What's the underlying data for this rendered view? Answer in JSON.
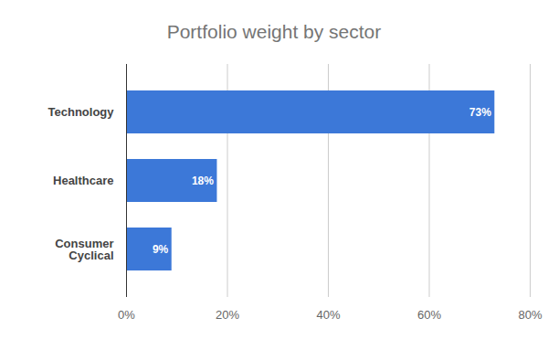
{
  "chart_data": {
    "type": "bar",
    "title": "Portfolio weight by sector",
    "orientation": "horizontal",
    "categories": [
      "Technology",
      "Healthcare",
      "Consumer Cyclical"
    ],
    "values": [
      73,
      18,
      9
    ],
    "value_labels": [
      "73%",
      "18%",
      "9%"
    ],
    "data_labels": true,
    "color": "#3c78d8",
    "xlim": [
      0,
      80
    ],
    "xticks": [
      {
        "value": 0,
        "label": "0%"
      },
      {
        "value": 20,
        "label": "20%"
      },
      {
        "value": 40,
        "label": "40%"
      },
      {
        "value": 60,
        "label": "60%"
      },
      {
        "value": 80,
        "label": "80%"
      }
    ],
    "grid": true
  }
}
